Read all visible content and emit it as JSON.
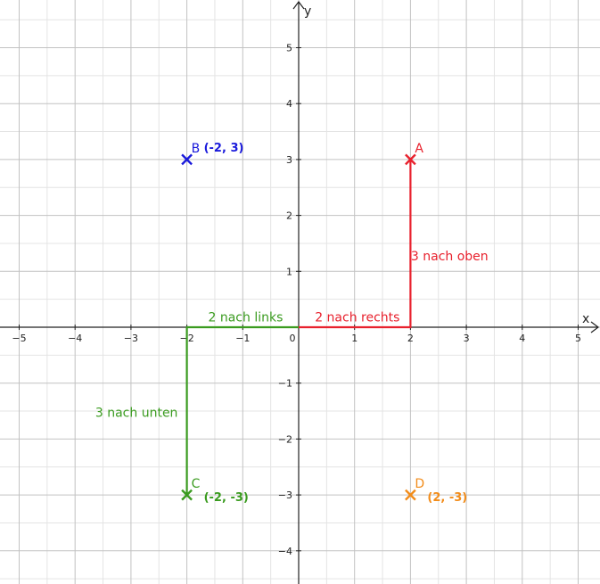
{
  "chart_data": {
    "type": "scatter",
    "title": "",
    "xlabel": "x",
    "ylabel": "y",
    "xlim": [
      -5.3,
      5.4
    ],
    "ylim": [
      -4.5,
      5.8
    ],
    "grid": true,
    "x_ticks": [
      {
        "value": -5,
        "label": "−5"
      },
      {
        "value": -4,
        "label": "−4"
      },
      {
        "value": -3,
        "label": "−3"
      },
      {
        "value": -2,
        "label": "−2"
      },
      {
        "value": -1,
        "label": "−1"
      },
      {
        "value": 0,
        "label": "0"
      },
      {
        "value": 1,
        "label": "1"
      },
      {
        "value": 2,
        "label": "2"
      },
      {
        "value": 3,
        "label": "3"
      },
      {
        "value": 4,
        "label": "4"
      },
      {
        "value": 5,
        "label": "5"
      }
    ],
    "y_ticks": [
      {
        "value": -4,
        "label": "−4"
      },
      {
        "value": -3,
        "label": "−3"
      },
      {
        "value": -2,
        "label": "−2"
      },
      {
        "value": -1,
        "label": "−1"
      },
      {
        "value": 1,
        "label": "1"
      },
      {
        "value": 2,
        "label": "2"
      },
      {
        "value": 3,
        "label": "3"
      },
      {
        "value": 4,
        "label": "4"
      },
      {
        "value": 5,
        "label": "5"
      }
    ],
    "points": [
      {
        "name": "A",
        "x": 2,
        "y": 3,
        "color": "#e8212d",
        "coord_label": ""
      },
      {
        "name": "B",
        "x": -2,
        "y": 3,
        "color": "#1a1adb",
        "coord_label": "(-2, 3)"
      },
      {
        "name": "C",
        "x": -2,
        "y": -3,
        "color": "#3a9b1f",
        "coord_label": "(-2, -3)"
      },
      {
        "name": "D",
        "x": 2,
        "y": -3,
        "color": "#f28c1a",
        "coord_label": "(2, -3)"
      }
    ],
    "paths": [
      {
        "color": "#e8212d",
        "points": [
          [
            0,
            0
          ],
          [
            2,
            0
          ],
          [
            2,
            3
          ]
        ]
      },
      {
        "color": "#3a9b1f",
        "points": [
          [
            0,
            0
          ],
          [
            -2,
            0
          ],
          [
            -2,
            -3
          ]
        ]
      }
    ],
    "annotations": [
      {
        "text": "2 nach rechts",
        "x": 1.05,
        "y": 0.1,
        "color": "#e8212d"
      },
      {
        "text": "3 nach oben",
        "x": 2.7,
        "y": 1.2,
        "color": "#e8212d"
      },
      {
        "text": "2 nach links",
        "x": -0.95,
        "y": 0.1,
        "color": "#3a9b1f"
      },
      {
        "text": "3 nach unten",
        "x": -2.9,
        "y": -1.6,
        "color": "#3a9b1f"
      }
    ]
  }
}
